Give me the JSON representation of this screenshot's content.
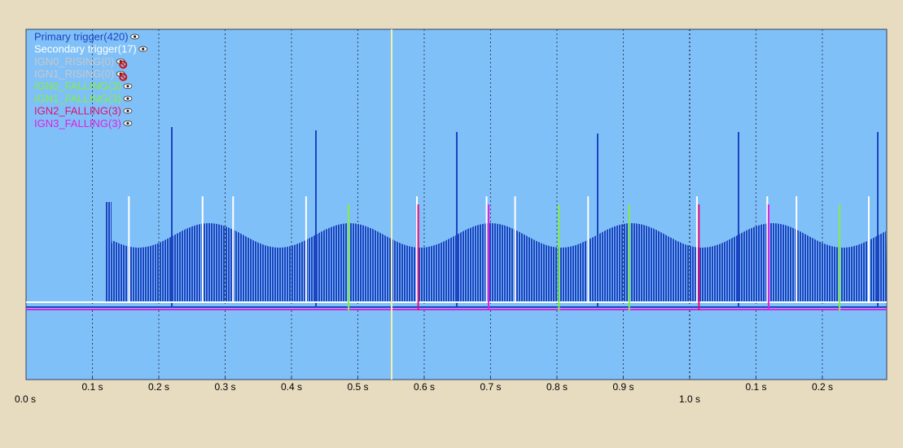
{
  "legend": [
    {
      "name": "Primary trigger(420)",
      "color": "#1c44c0",
      "visible": true
    },
    {
      "name": "Secondary trigger(17)",
      "color": "#ffffff",
      "visible": true,
      "times": [
        0.155,
        0.266,
        0.312,
        0.422,
        0.589,
        0.694,
        0.737,
        0.847,
        1.011,
        1.117,
        1.161,
        1.27
      ]
    },
    {
      "name": "IGN0_RISING(0)",
      "color": "#c8c8c8",
      "visible": false
    },
    {
      "name": "IGN1_RISING(0)",
      "color": "#c8c8c8",
      "visible": false
    },
    {
      "name": "IGN0_FALLING(3)",
      "color": "#80f040",
      "visible": true,
      "times": [
        0.486,
        0.909
      ]
    },
    {
      "name": "IGN1_FALLING(3)",
      "color": "#80f040",
      "visible": true,
      "times": [
        0.803,
        1.226
      ]
    },
    {
      "name": "IGN2_FALLING(3)",
      "color": "#e0107a",
      "visible": true,
      "times": [
        0.591,
        1.014
      ]
    },
    {
      "name": "IGN3_FALLING(3)",
      "color": "#e020e0",
      "visible": true,
      "times": [
        0.697,
        1.119
      ]
    }
  ],
  "x_axis": {
    "range": [
      0,
      1.297
    ],
    "ticks": [
      {
        "value": 0,
        "label": "0.0 s"
      },
      {
        "value": 0.1,
        "label": "0.1 s"
      },
      {
        "value": 0.2,
        "label": "0.2 s"
      },
      {
        "value": 0.3,
        "label": "0.3 s"
      },
      {
        "value": 0.4,
        "label": "0.4 s"
      },
      {
        "value": 0.5,
        "label": "0.5 s"
      },
      {
        "value": 0.6,
        "label": "0.6 s"
      },
      {
        "value": 0.7,
        "label": "0.7 s"
      },
      {
        "value": 0.8,
        "label": "0.8 s"
      },
      {
        "value": 0.9,
        "label": "0.9 s"
      },
      {
        "value": 1,
        "label": "1.0 s"
      },
      {
        "value": 1.1,
        "label": "0.1 s"
      },
      {
        "value": 1.2,
        "label": "0.2 s"
      }
    ]
  }
}
